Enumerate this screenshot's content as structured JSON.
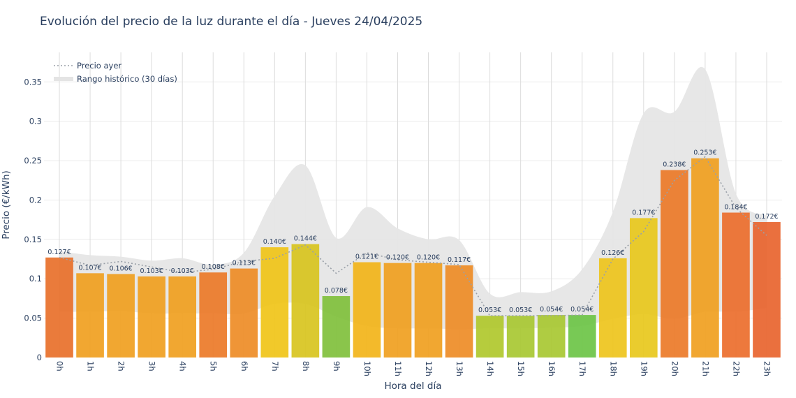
{
  "chart_data": {
    "type": "bar",
    "title": "Evolución del precio de la luz durante el día - Jueves 24/04/2025",
    "xlabel": "Hora del día",
    "ylabel": "Precio (€/kWh)",
    "ylim": [
      0,
      0.3875
    ],
    "yticks": [
      0,
      0.05,
      0.1,
      0.15,
      0.2,
      0.25,
      0.3,
      0.35
    ],
    "ytick_labels": [
      "0",
      "0.05",
      "0.1",
      "0.15",
      "0.2",
      "0.25",
      "0.3",
      "0.35"
    ],
    "categories": [
      "0h",
      "1h",
      "2h",
      "3h",
      "4h",
      "5h",
      "6h",
      "7h",
      "8h",
      "9h",
      "10h",
      "11h",
      "12h",
      "13h",
      "14h",
      "15h",
      "16h",
      "17h",
      "18h",
      "19h",
      "20h",
      "21h",
      "22h",
      "23h"
    ],
    "values": [
      0.127,
      0.107,
      0.106,
      0.103,
      0.103,
      0.108,
      0.113,
      0.14,
      0.144,
      0.078,
      0.121,
      0.12,
      0.12,
      0.117,
      0.053,
      0.053,
      0.054,
      0.054,
      0.126,
      0.177,
      0.238,
      0.253,
      0.184,
      0.172
    ],
    "value_labels": [
      "0.127€",
      "0.107€",
      "0.106€",
      "0.103€",
      "0.103€",
      "0.108€",
      "0.113€",
      "0.140€",
      "0.144€",
      "0.078€",
      "0.121€",
      "0.120€",
      "0.120€",
      "0.117€",
      "0.053€",
      "0.053€",
      "0.054€",
      "0.054€",
      "0.126€",
      "0.177€",
      "0.238€",
      "0.253€",
      "0.184€",
      "0.172€"
    ],
    "bar_colors": [
      "#e8702a",
      "#f0a020",
      "#f0a020",
      "#f0a020",
      "#f0a020",
      "#ec7a28",
      "#ee8c26",
      "#f0c418",
      "#d8c41e",
      "#80c03c",
      "#f2b419",
      "#f0a020",
      "#f0a020",
      "#ee8c26",
      "#b0c82c",
      "#a8c832",
      "#a8c832",
      "#6cc446",
      "#eec41c",
      "#e8c81c",
      "#ec7a28",
      "#f0a020",
      "#ec6e2c",
      "#e8642e"
    ],
    "series": [
      {
        "name": "Precio ayer",
        "style": "dotted",
        "color": "#9aa0a8",
        "values": [
          0.127,
          0.117,
          0.122,
          0.115,
          0.108,
          0.112,
          0.122,
          0.126,
          0.143,
          0.107,
          0.133,
          0.124,
          0.121,
          0.118,
          0.053,
          0.053,
          0.053,
          0.054,
          0.125,
          0.16,
          0.225,
          0.255,
          0.19,
          0.155
        ]
      },
      {
        "name": "Rango histórico (30 días)",
        "type": "band",
        "color": "#e6e6e6",
        "upper": [
          0.135,
          0.13,
          0.128,
          0.123,
          0.126,
          0.118,
          0.133,
          0.205,
          0.244,
          0.152,
          0.191,
          0.164,
          0.15,
          0.149,
          0.081,
          0.083,
          0.084,
          0.112,
          0.185,
          0.31,
          0.312,
          0.366,
          0.208,
          0.18
        ],
        "lower": [
          0.058,
          0.058,
          0.059,
          0.056,
          0.056,
          0.056,
          0.056,
          0.068,
          0.068,
          0.052,
          0.04,
          0.037,
          0.037,
          0.036,
          0.037,
          0.037,
          0.038,
          0.04,
          0.049,
          0.055,
          0.049,
          0.058,
          0.058,
          0.063
        ]
      }
    ],
    "legend": {
      "position": "top-left",
      "entries": [
        "Precio ayer",
        "Rango histórico (30 días)"
      ]
    },
    "grid": true
  }
}
